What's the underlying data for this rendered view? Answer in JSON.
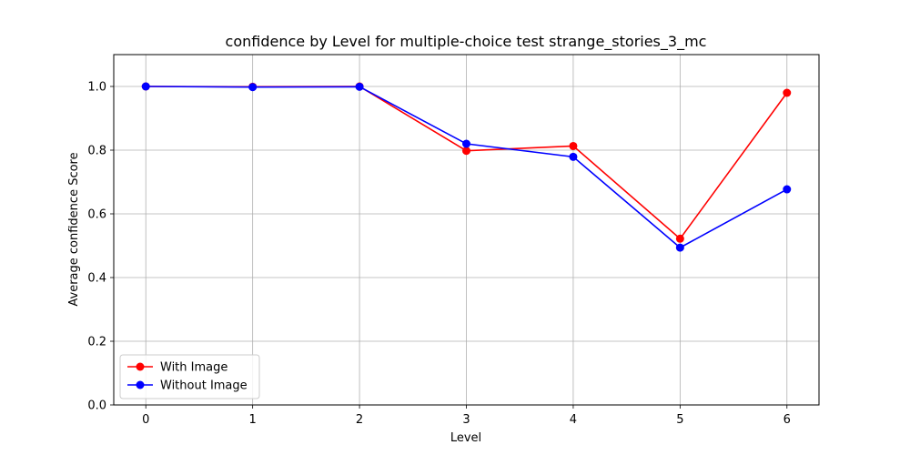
{
  "chart_data": {
    "type": "line",
    "title": "confidence by Level for multiple-choice test strange_stories_3_mc",
    "xlabel": "Level",
    "ylabel": "Average confidence Score",
    "x": [
      0,
      1,
      2,
      3,
      4,
      5,
      6
    ],
    "xlim": [
      -0.3,
      6.3
    ],
    "ylim": [
      0.0,
      1.1
    ],
    "yticks": [
      "0.0",
      "0.2",
      "0.4",
      "0.6",
      "0.8",
      "1.0"
    ],
    "ytick_values": [
      0.0,
      0.2,
      0.4,
      0.6,
      0.8,
      1.0
    ],
    "xticks": [
      "0",
      "1",
      "2",
      "3",
      "4",
      "5",
      "6"
    ],
    "grid": true,
    "legend_position": "lower-left",
    "series": [
      {
        "name": "With Image",
        "color": "#ff0000",
        "values": [
          1.0,
          0.999,
          1.0,
          0.798,
          0.813,
          0.522,
          0.98
        ]
      },
      {
        "name": "Without Image",
        "color": "#0000ff",
        "values": [
          1.0,
          0.998,
          0.999,
          0.82,
          0.779,
          0.494,
          0.677
        ]
      }
    ]
  }
}
